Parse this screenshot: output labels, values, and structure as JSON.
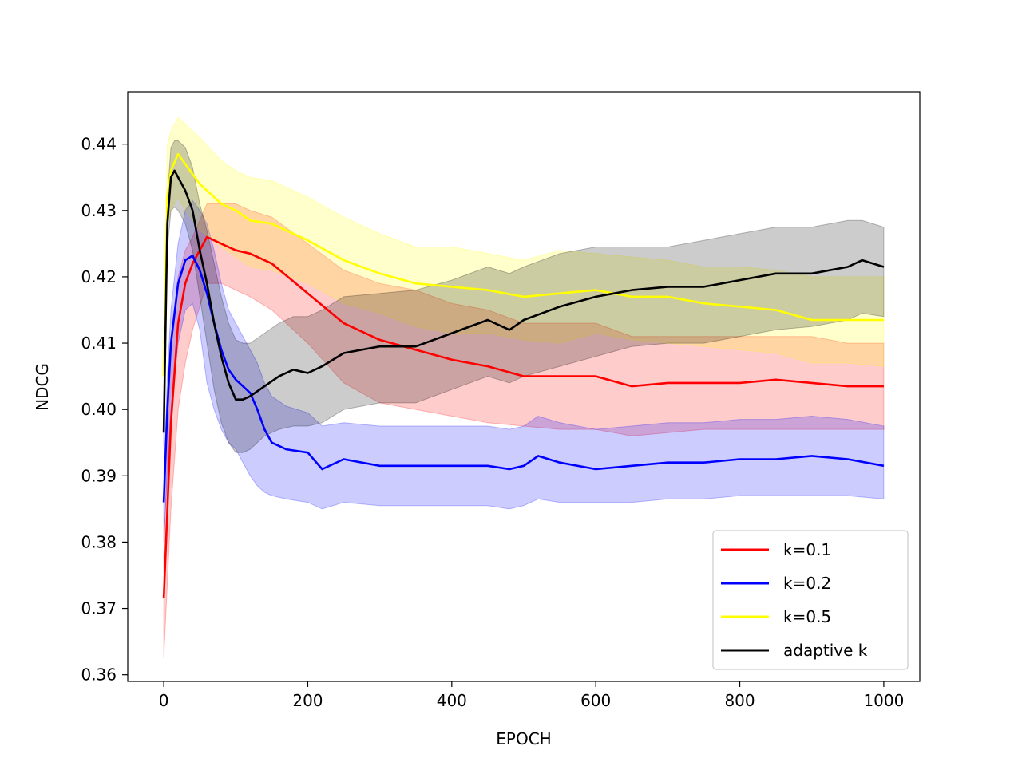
{
  "chart_data": {
    "type": "line",
    "title": "",
    "xlabel": "EPOCH",
    "ylabel": "NDCG",
    "xlim": [
      -50,
      1050
    ],
    "ylim": [
      0.359,
      0.4479
    ],
    "xticks": [
      0,
      200,
      400,
      600,
      800,
      1000
    ],
    "xtick_labels": [
      "0",
      "200",
      "400",
      "600",
      "800",
      "1000"
    ],
    "yticks": [
      0.36,
      0.37,
      0.38,
      0.39,
      0.4,
      0.41,
      0.42,
      0.43,
      0.44
    ],
    "ytick_labels": [
      "0.36",
      "0.37",
      "0.38",
      "0.39",
      "0.40",
      "0.41",
      "0.42",
      "0.43",
      "0.44"
    ],
    "grid": false,
    "legend_position": "lower-right",
    "series": [
      {
        "name": "k=0.1",
        "color": "#ff0000",
        "x": [
          0,
          10,
          20,
          30,
          40,
          60,
          80,
          100,
          120,
          150,
          200,
          250,
          300,
          350,
          400,
          450,
          500,
          550,
          600,
          650,
          700,
          750,
          800,
          850,
          900,
          950,
          1000
        ],
        "y": [
          0.3715,
          0.398,
          0.413,
          0.419,
          0.422,
          0.426,
          0.425,
          0.424,
          0.4235,
          0.422,
          0.4175,
          0.413,
          0.4105,
          0.409,
          0.4075,
          0.4065,
          0.405,
          0.405,
          0.405,
          0.4035,
          0.404,
          0.404,
          0.404,
          0.4045,
          0.404,
          0.4035,
          0.4035
        ],
        "lower": [
          0.3625,
          0.385,
          0.4,
          0.407,
          0.412,
          0.419,
          0.419,
          0.418,
          0.417,
          0.415,
          0.41,
          0.404,
          0.401,
          0.4,
          0.399,
          0.398,
          0.3975,
          0.397,
          0.397,
          0.396,
          0.3965,
          0.397,
          0.397,
          0.397,
          0.397,
          0.397,
          0.397
        ],
        "upper": [
          0.378,
          0.41,
          0.42,
          0.424,
          0.426,
          0.431,
          0.431,
          0.431,
          0.43,
          0.429,
          0.425,
          0.421,
          0.419,
          0.418,
          0.416,
          0.415,
          0.413,
          0.413,
          0.413,
          0.411,
          0.411,
          0.411,
          0.411,
          0.411,
          0.411,
          0.41,
          0.41
        ]
      },
      {
        "name": "k=0.2",
        "color": "#0000ff",
        "x": [
          0,
          5,
          10,
          20,
          30,
          40,
          50,
          60,
          70,
          80,
          90,
          100,
          110,
          120,
          130,
          140,
          150,
          170,
          200,
          220,
          250,
          300,
          350,
          400,
          450,
          480,
          500,
          520,
          550,
          600,
          650,
          700,
          750,
          800,
          850,
          900,
          950,
          1000
        ],
        "y": [
          0.386,
          0.4,
          0.41,
          0.419,
          0.4225,
          0.4232,
          0.421,
          0.4175,
          0.413,
          0.409,
          0.406,
          0.4045,
          0.4035,
          0.4025,
          0.4,
          0.397,
          0.395,
          0.394,
          0.3935,
          0.391,
          0.3925,
          0.3915,
          0.3915,
          0.3915,
          0.3915,
          0.391,
          0.3915,
          0.393,
          0.392,
          0.391,
          0.3915,
          0.392,
          0.392,
          0.3925,
          0.3925,
          0.393,
          0.3925,
          0.3915
        ],
        "lower": [
          0.38,
          0.39,
          0.4,
          0.41,
          0.415,
          0.416,
          0.412,
          0.404,
          0.4,
          0.397,
          0.395,
          0.394,
          0.392,
          0.39,
          0.3885,
          0.3875,
          0.387,
          0.3865,
          0.386,
          0.385,
          0.386,
          0.3855,
          0.3855,
          0.3855,
          0.3855,
          0.385,
          0.3855,
          0.3865,
          0.386,
          0.386,
          0.386,
          0.3865,
          0.3865,
          0.387,
          0.387,
          0.387,
          0.387,
          0.3865
        ],
        "upper": [
          0.39,
          0.405,
          0.415,
          0.425,
          0.43,
          0.4315,
          0.43,
          0.428,
          0.424,
          0.419,
          0.415,
          0.413,
          0.411,
          0.409,
          0.407,
          0.404,
          0.402,
          0.4005,
          0.3995,
          0.3975,
          0.398,
          0.3975,
          0.3975,
          0.3975,
          0.3975,
          0.397,
          0.3975,
          0.399,
          0.398,
          0.397,
          0.3975,
          0.398,
          0.398,
          0.3985,
          0.3985,
          0.399,
          0.3985,
          0.3975
        ]
      },
      {
        "name": "k=0.5",
        "color": "#ffff00",
        "x": [
          0,
          5,
          10,
          20,
          30,
          50,
          80,
          100,
          120,
          150,
          200,
          250,
          300,
          350,
          400,
          450,
          500,
          550,
          600,
          650,
          700,
          750,
          800,
          850,
          900,
          950,
          1000
        ],
        "y": [
          0.405,
          0.432,
          0.436,
          0.4385,
          0.437,
          0.434,
          0.431,
          0.43,
          0.4285,
          0.428,
          0.4255,
          0.4225,
          0.4205,
          0.419,
          0.4185,
          0.418,
          0.417,
          0.4175,
          0.418,
          0.417,
          0.417,
          0.416,
          0.4155,
          0.415,
          0.4135,
          0.4135,
          0.4135
        ],
        "lower": [
          0.4,
          0.428,
          0.43,
          0.432,
          0.43,
          0.427,
          0.4245,
          0.423,
          0.4215,
          0.421,
          0.419,
          0.416,
          0.4145,
          0.4125,
          0.4115,
          0.4115,
          0.4105,
          0.41,
          0.4115,
          0.4105,
          0.41,
          0.4095,
          0.409,
          0.4085,
          0.407,
          0.407,
          0.4065
        ],
        "upper": [
          0.412,
          0.44,
          0.442,
          0.444,
          0.443,
          0.441,
          0.4375,
          0.436,
          0.435,
          0.4345,
          0.432,
          0.429,
          0.4265,
          0.4245,
          0.4245,
          0.4235,
          0.4225,
          0.424,
          0.4235,
          0.423,
          0.4225,
          0.4215,
          0.4215,
          0.421,
          0.42,
          0.42,
          0.42
        ]
      },
      {
        "name": "adaptive k",
        "color": "#000000",
        "x": [
          0,
          5,
          10,
          15,
          20,
          30,
          40,
          50,
          60,
          70,
          80,
          90,
          100,
          110,
          120,
          140,
          160,
          180,
          200,
          220,
          250,
          300,
          350,
          400,
          450,
          480,
          500,
          550,
          600,
          650,
          700,
          750,
          800,
          850,
          900,
          950,
          970,
          1000
        ],
        "y": [
          0.3965,
          0.428,
          0.435,
          0.436,
          0.435,
          0.433,
          0.43,
          0.424,
          0.419,
          0.413,
          0.408,
          0.404,
          0.4015,
          0.4015,
          0.402,
          0.4035,
          0.405,
          0.406,
          0.4055,
          0.4065,
          0.4085,
          0.4095,
          0.4095,
          0.4115,
          0.4135,
          0.412,
          0.4135,
          0.4155,
          0.417,
          0.418,
          0.4185,
          0.4185,
          0.4195,
          0.4205,
          0.4205,
          0.4215,
          0.4225,
          0.4215
        ],
        "lower": [
          0.3945,
          0.424,
          0.43,
          0.4305,
          0.43,
          0.428,
          0.424,
          0.417,
          0.41,
          0.403,
          0.398,
          0.395,
          0.3935,
          0.3935,
          0.394,
          0.396,
          0.397,
          0.3975,
          0.3975,
          0.398,
          0.4,
          0.401,
          0.401,
          0.403,
          0.405,
          0.404,
          0.405,
          0.4065,
          0.408,
          0.4095,
          0.41,
          0.41,
          0.411,
          0.412,
          0.4125,
          0.4135,
          0.4145,
          0.414
        ],
        "upper": [
          0.399,
          0.432,
          0.4395,
          0.4405,
          0.4405,
          0.4395,
          0.4365,
          0.431,
          0.427,
          0.422,
          0.417,
          0.413,
          0.4105,
          0.41,
          0.41,
          0.4115,
          0.413,
          0.414,
          0.414,
          0.415,
          0.417,
          0.4175,
          0.418,
          0.4195,
          0.4215,
          0.4205,
          0.4215,
          0.4235,
          0.4245,
          0.4245,
          0.4245,
          0.4255,
          0.4265,
          0.4275,
          0.4275,
          0.4285,
          0.4285,
          0.4275
        ]
      }
    ]
  }
}
